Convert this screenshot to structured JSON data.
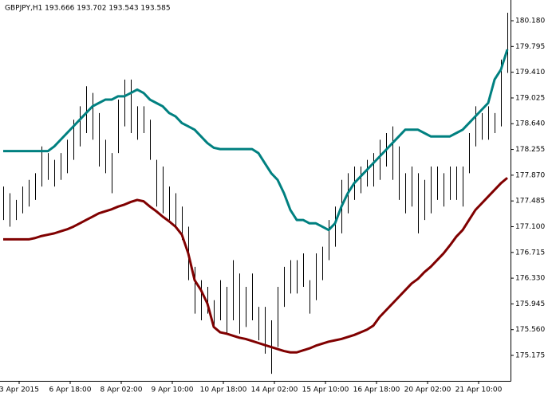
{
  "chart_data": {
    "type": "ohlc",
    "title": "GBPJPY,H1  193.666 193.702 193.543 193.585",
    "x": [
      0,
      1,
      2,
      3,
      4,
      5,
      6,
      7,
      8,
      9,
      10,
      11,
      12,
      13,
      14,
      15,
      16,
      17,
      18,
      19,
      20,
      21,
      22,
      23,
      24,
      25,
      26,
      27,
      28,
      29,
      30,
      31,
      32,
      33,
      34,
      35,
      36,
      37,
      38,
      39,
      40,
      41,
      42,
      43,
      44,
      45,
      46,
      47,
      48,
      49,
      50,
      51,
      52,
      53,
      54,
      55,
      56,
      57,
      58,
      59,
      60,
      61,
      62,
      63,
      64,
      65,
      66,
      67,
      68,
      69,
      70,
      71,
      72,
      73,
      74,
      75,
      76,
      77,
      78,
      79
    ],
    "high": [
      177.7,
      177.6,
      177.5,
      177.7,
      177.8,
      177.9,
      178.3,
      178.2,
      178.1,
      178.2,
      178.4,
      178.7,
      178.9,
      179.2,
      179.1,
      178.8,
      178.4,
      178.2,
      179.0,
      179.3,
      179.3,
      178.9,
      178.9,
      178.7,
      178.1,
      178.0,
      177.7,
      177.6,
      177.4,
      177.1,
      176.5,
      176.3,
      176.2,
      176.0,
      176.3,
      176.2,
      176.6,
      176.4,
      176.2,
      176.4,
      175.9,
      175.9,
      175.7,
      176.2,
      176.5,
      176.6,
      176.6,
      176.7,
      176.3,
      176.7,
      176.8,
      177.2,
      177.4,
      177.8,
      177.9,
      178.0,
      178.0,
      178.1,
      178.2,
      178.4,
      178.5,
      178.6,
      178.3,
      177.9,
      178.0,
      177.9,
      177.8,
      178.0,
      178.0,
      177.9,
      178.0,
      178.0,
      178.0,
      178.5,
      178.9,
      178.8,
      178.9,
      178.8,
      179.6,
      180.3
    ],
    "low": [
      177.2,
      177.1,
      177.2,
      177.3,
      177.4,
      177.5,
      177.7,
      177.8,
      177.7,
      177.8,
      177.9,
      178.1,
      178.3,
      178.5,
      178.4,
      178.0,
      177.9,
      177.6,
      178.2,
      178.6,
      178.5,
      178.4,
      178.5,
      178.1,
      177.4,
      177.3,
      177.2,
      177.1,
      176.9,
      176.3,
      175.8,
      175.7,
      175.8,
      175.6,
      175.7,
      175.5,
      175.7,
      175.5,
      175.6,
      175.7,
      175.4,
      175.2,
      174.9,
      175.3,
      175.9,
      176.1,
      176.1,
      176.2,
      175.8,
      176.0,
      176.3,
      176.6,
      176.8,
      177.0,
      177.3,
      177.5,
      177.6,
      177.7,
      177.7,
      177.8,
      178.0,
      177.8,
      177.5,
      177.3,
      177.4,
      177.0,
      177.2,
      177.3,
      177.5,
      177.4,
      177.5,
      177.5,
      177.4,
      177.9,
      178.3,
      178.4,
      178.4,
      178.5,
      178.6,
      179.4
    ],
    "upper": [
      178.23,
      178.23,
      178.23,
      178.23,
      178.23,
      178.23,
      178.23,
      178.23,
      178.3,
      178.4,
      178.5,
      178.6,
      178.7,
      178.8,
      178.9,
      178.95,
      179.0,
      179.0,
      179.05,
      179.05,
      179.1,
      179.15,
      179.1,
      179.0,
      178.95,
      178.9,
      178.8,
      178.75,
      178.65,
      178.6,
      178.55,
      178.45,
      178.35,
      178.28,
      178.26,
      178.26,
      178.26,
      178.26,
      178.26,
      178.26,
      178.2,
      178.05,
      177.9,
      177.8,
      177.6,
      177.35,
      177.2,
      177.2,
      177.15,
      177.15,
      177.1,
      177.05,
      177.15,
      177.4,
      177.6,
      177.75,
      177.85,
      177.95,
      178.05,
      178.15,
      178.25,
      178.35,
      178.45,
      178.55,
      178.55,
      178.55,
      178.5,
      178.45,
      178.45,
      178.45,
      178.45,
      178.5,
      178.55,
      178.65,
      178.75,
      178.85,
      178.95,
      179.3,
      179.45,
      179.75
    ],
    "lower": [
      176.91,
      176.91,
      176.91,
      176.91,
      176.91,
      176.93,
      176.96,
      176.98,
      177.0,
      177.03,
      177.06,
      177.1,
      177.15,
      177.2,
      177.25,
      177.3,
      177.33,
      177.36,
      177.4,
      177.43,
      177.47,
      177.5,
      177.48,
      177.4,
      177.33,
      177.25,
      177.18,
      177.1,
      176.98,
      176.7,
      176.3,
      176.15,
      175.95,
      175.6,
      175.52,
      175.5,
      175.47,
      175.44,
      175.42,
      175.39,
      175.36,
      175.33,
      175.3,
      175.27,
      175.24,
      175.22,
      175.22,
      175.25,
      175.28,
      175.32,
      175.35,
      175.38,
      175.4,
      175.42,
      175.45,
      175.48,
      175.52,
      175.56,
      175.62,
      175.75,
      175.85,
      175.95,
      176.05,
      176.15,
      176.25,
      176.32,
      176.42,
      176.5,
      176.6,
      176.7,
      176.82,
      176.95,
      177.05,
      177.2,
      177.35,
      177.45,
      177.55,
      177.65,
      177.75,
      177.83
    ],
    "bar_color": "#000000",
    "upper_color": "#008080",
    "lower_color": "#800000",
    "xlim": [
      -0.5,
      79.5
    ],
    "xticks": [
      {
        "value": 2.5,
        "label": "3 Apr 2015"
      },
      {
        "value": 10.5,
        "label": "6 Apr 18:00"
      },
      {
        "value": 18.5,
        "label": "8 Apr 02:00"
      },
      {
        "value": 26.5,
        "label": "9 Apr 10:00"
      },
      {
        "value": 34.5,
        "label": "10 Apr 18:00"
      },
      {
        "value": 42.5,
        "label": "14 Apr 02:00"
      },
      {
        "value": 50.5,
        "label": "15 Apr 10:00"
      },
      {
        "value": 58.5,
        "label": "16 Apr 18:00"
      },
      {
        "value": 66.5,
        "label": "20 Apr 02:00"
      },
      {
        "value": 74.5,
        "label": "21 Apr 10:00"
      }
    ],
    "ylim": [
      174.794,
      180.49
    ],
    "yticks": [
      {
        "value": 180.18,
        "label": "180.180"
      },
      179.795,
      {
        "value": 179.41,
        "label": "179.410"
      },
      179.025,
      {
        "value": 178.64,
        "label": "178.640"
      },
      178.255,
      {
        "value": 177.87,
        "label": "177.870"
      },
      177.485,
      {
        "value": 177.1,
        "label": "177.100"
      },
      176.715,
      {
        "value": 176.33,
        "label": "176.330"
      },
      175.945,
      {
        "value": 175.56,
        "label": "175.560"
      },
      175.175
    ]
  }
}
